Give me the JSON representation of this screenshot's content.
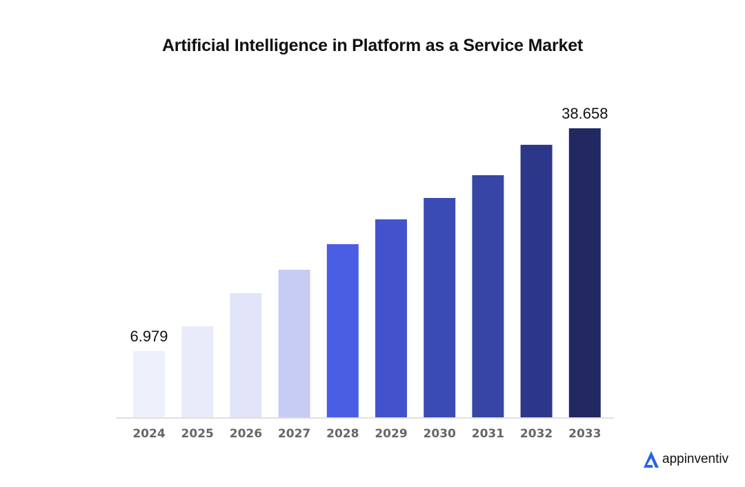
{
  "chart_data": {
    "type": "bar",
    "title": "Artificial Intelligence in Platform as a Service Market",
    "xlabel": "",
    "ylabel": "",
    "categories": [
      "2024",
      "2025",
      "2026",
      "2027",
      "2028",
      "2029",
      "2030",
      "2031",
      "2032",
      "2033"
    ],
    "values": [
      6.979,
      10.51,
      15.22,
      18.55,
      22.18,
      25.71,
      28.75,
      31.99,
      36.31,
      38.658
    ],
    "data_labels": {
      "2024": "6.979",
      "2033": "38.658"
    },
    "bar_colors": [
      "#eef0fb",
      "#e9ebfa",
      "#e2e5f9",
      "#c7ccf5",
      "#4a5ee4",
      "#4253cc",
      "#3b4bb5",
      "#3746a6",
      "#2d3789",
      "#212862"
    ],
    "axis_color": "#e0e0e0",
    "tick_label_color": "#666666",
    "grid": false,
    "legend": "none"
  },
  "brand": {
    "name": "appinventiv",
    "accent": "#2563eb"
  }
}
